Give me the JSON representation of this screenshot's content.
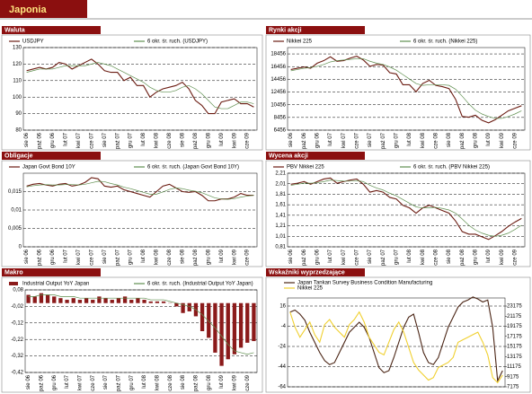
{
  "header": {
    "title": "Japonia"
  },
  "chart_data": [
    {
      "type": "line",
      "title": "Waluta",
      "categories": [
        "sie 06",
        null,
        "paź 06",
        null,
        "gru 06",
        null,
        "lut 07",
        null,
        "kwi 07",
        null,
        "cze 07",
        null,
        "sie 07",
        null,
        "paź 07",
        null,
        "gru 07",
        null,
        "lut 08",
        null,
        "kwi 08",
        null,
        "cze 08",
        null,
        "sie 08",
        null,
        "paź 08",
        null,
        "gru 08",
        null,
        "lut 09",
        null,
        "kwi 09",
        null,
        "cze 09",
        null
      ],
      "series": [
        {
          "name": "USDJPY",
          "color": "#6b1c12",
          "values": [
            116,
            117,
            118,
            117,
            118,
            121,
            120,
            117,
            119,
            121,
            123,
            120,
            116,
            115,
            115,
            110,
            112,
            107,
            107,
            100,
            103,
            105,
            106,
            107,
            109,
            105,
            98,
            95,
            90,
            90,
            97,
            98,
            99,
            96,
            96,
            94
          ]
        },
        {
          "name": "6 okr. śr. ruch. (USDJPY)",
          "color": "#5f8f4f",
          "values": [
            115,
            116,
            117,
            117,
            117,
            118,
            119,
            119,
            119,
            119,
            120,
            121,
            120,
            119,
            117,
            115,
            113,
            111,
            109,
            106,
            104,
            103,
            103,
            104,
            106,
            107,
            105,
            102,
            98,
            94,
            93,
            93,
            95,
            97,
            97,
            96
          ]
        }
      ],
      "ylim": [
        80,
        130
      ],
      "yticks": [
        80,
        90,
        100,
        110,
        120,
        130
      ],
      "grid": true,
      "legend": "top"
    },
    {
      "type": "line",
      "title": "Rynki akcji",
      "categories": [
        "sie 06",
        null,
        "paź 06",
        null,
        "gru 06",
        null,
        "lut 07",
        null,
        "kwi 07",
        null,
        "cze 07",
        null,
        "sie 07",
        null,
        "paź 07",
        null,
        "gru 07",
        null,
        "lut 08",
        null,
        "kwi 08",
        null,
        "cze 08",
        null,
        "sie 08",
        null,
        "paź 08",
        null,
        "gru 08",
        null,
        "lut 09",
        null,
        "kwi 09",
        null,
        "cze 09",
        null
      ],
      "series": [
        {
          "name": "Nikkei 225",
          "color": "#6b1c12",
          "values": [
            16000,
            16200,
            16400,
            16200,
            17000,
            17400,
            18000,
            17300,
            17400,
            17800,
            18100,
            17500,
            16500,
            16800,
            16700,
            15500,
            15300,
            13600,
            13600,
            12500,
            13800,
            14300,
            13500,
            13300,
            13000,
            11300,
            8600,
            8500,
            8800,
            8000,
            7600,
            8100,
            8800,
            9500,
            9900,
            10300
          ]
        },
        {
          "name": "6 okr. śr. ruch. (Nikkei 225)",
          "color": "#5f8f4f",
          "values": [
            15800,
            16000,
            16200,
            16300,
            16500,
            16800,
            17200,
            17400,
            17500,
            17600,
            17700,
            17700,
            17300,
            17000,
            16800,
            16400,
            15900,
            15200,
            14500,
            13800,
            13500,
            13600,
            13600,
            13600,
            13500,
            12900,
            11800,
            10600,
            9600,
            9000,
            8600,
            8300,
            8300,
            8600,
            9000,
            9500
          ]
        }
      ],
      "ylim": [
        6456,
        19456
      ],
      "yticks": [
        6456,
        8456,
        10456,
        12456,
        14456,
        16456,
        18456
      ],
      "grid": true,
      "legend": "top"
    },
    {
      "type": "line",
      "title": "Obligacje",
      "categories": [
        "sie 06",
        null,
        "paź 06",
        null,
        "gru 06",
        null,
        "lut 07",
        null,
        "kwi 07",
        null,
        "cze 07",
        null,
        "sie 07",
        null,
        "paź 07",
        null,
        "gru 07",
        null,
        "lut 08",
        null,
        "kwi 08",
        null,
        "cze 08",
        null,
        "sie 08",
        null,
        "paź 08",
        null,
        "gru 08",
        null,
        "lut 09",
        null,
        "kwi 09",
        null,
        "cze 09",
        null
      ],
      "series": [
        {
          "name": "Japan Govt Bond 10Y",
          "color": "#6b1c12",
          "values": [
            0.0165,
            0.017,
            0.0172,
            0.0168,
            0.0165,
            0.017,
            0.0172,
            0.0165,
            0.0168,
            0.0175,
            0.0188,
            0.0185,
            0.0165,
            0.0162,
            0.0165,
            0.0155,
            0.015,
            0.0145,
            0.014,
            0.0135,
            0.015,
            0.0165,
            0.017,
            0.016,
            0.015,
            0.0148,
            0.015,
            0.014,
            0.0125,
            0.0125,
            0.013,
            0.013,
            0.0135,
            0.0145,
            0.014,
            0.014
          ]
        },
        {
          "name": "6 okr. śr. ruch. (Japan Govt Bond 10Y)",
          "color": "#5f8f4f",
          "values": [
            0.0163,
            0.0166,
            0.0168,
            0.0169,
            0.0168,
            0.0168,
            0.0169,
            0.0169,
            0.0168,
            0.017,
            0.0174,
            0.0178,
            0.0177,
            0.0172,
            0.0168,
            0.0162,
            0.0158,
            0.0153,
            0.0148,
            0.0143,
            0.0143,
            0.0149,
            0.0156,
            0.016,
            0.0158,
            0.0154,
            0.0151,
            0.0147,
            0.014,
            0.0133,
            0.013,
            0.0129,
            0.0131,
            0.0135,
            0.0138,
            0.014
          ]
        }
      ],
      "ylim": [
        0,
        0.02
      ],
      "yticks": [
        0,
        {
          "value": 0.005,
          "label": "0,005"
        },
        {
          "value": 0.01,
          "label": "0,01"
        },
        {
          "value": 0.015,
          "label": "0,015"
        }
      ],
      "grid": true,
      "legend": "top"
    },
    {
      "type": "line",
      "title": "Wycena akcji",
      "categories": [
        "sie 06",
        null,
        "paź 06",
        null,
        "gru 06",
        null,
        "lut 07",
        null,
        "kwi 07",
        null,
        "cze 07",
        null,
        "sie 07",
        null,
        "paź 07",
        null,
        "gru 07",
        null,
        "lut 08",
        null,
        "kwi 08",
        null,
        "cze 08",
        null,
        "sie 08",
        null,
        "paź 08",
        null,
        "gru 08",
        null,
        "lut 09",
        null,
        "kwi 09",
        null,
        "cze 09",
        null
      ],
      "series": [
        {
          "name": "PBV Nikkei 225",
          "color": "#6b1c12",
          "values": [
            2.0,
            2.02,
            2.05,
            2.0,
            2.05,
            2.1,
            2.12,
            2.02,
            2.05,
            2.08,
            2.1,
            2.0,
            1.85,
            1.88,
            1.85,
            1.75,
            1.72,
            1.6,
            1.55,
            1.45,
            1.55,
            1.6,
            1.55,
            1.5,
            1.45,
            1.3,
            1.1,
            1.05,
            1.05,
            1.0,
            0.95,
            1.02,
            1.1,
            1.2,
            1.28,
            1.35
          ]
        },
        {
          "name": "6 okr. śr. ruch. (PBV Nikkei 225)",
          "color": "#5f8f4f",
          "values": [
            1.98,
            2.0,
            2.02,
            2.02,
            2.03,
            2.05,
            2.08,
            2.07,
            2.06,
            2.06,
            2.07,
            2.05,
            1.98,
            1.93,
            1.89,
            1.83,
            1.78,
            1.71,
            1.64,
            1.57,
            1.55,
            1.55,
            1.56,
            1.54,
            1.51,
            1.45,
            1.34,
            1.22,
            1.13,
            1.07,
            1.03,
            1.01,
            1.03,
            1.07,
            1.14,
            1.22
          ]
        }
      ],
      "ylim": [
        0.81,
        2.21
      ],
      "yticks": [
        {
          "value": 0.81,
          "label": "0,81"
        },
        {
          "value": 1.01,
          "label": "1,01"
        },
        {
          "value": 1.21,
          "label": "1,21"
        },
        {
          "value": 1.41,
          "label": "1,41"
        },
        {
          "value": 1.61,
          "label": "1,61"
        },
        {
          "value": 1.81,
          "label": "1,81"
        },
        {
          "value": 2.01,
          "label": "2,01"
        },
        {
          "value": 2.21,
          "label": "2,21"
        }
      ],
      "grid": true,
      "legend": "top"
    },
    {
      "type": "bar",
      "title": "Makro",
      "categories": [
        "sie 06",
        null,
        "paź 06",
        null,
        "gru 06",
        null,
        "lut 07",
        null,
        "kwi 07",
        null,
        "cze 07",
        null,
        "sie 07",
        null,
        "paź 07",
        null,
        "gru 07",
        null,
        "lut 08",
        null,
        "kwi 08",
        null,
        "cze 08",
        null,
        "sie 08",
        null,
        "paź 08",
        null,
        "gru 08",
        null,
        "lut 09",
        null,
        "kwi 09",
        null,
        "cze 09",
        null
      ],
      "series": [
        {
          "name": "Industrial Output YoY Japan",
          "color": "#8b1a1a",
          "type": "bar",
          "values": [
            0.05,
            0.04,
            0.06,
            0.05,
            0.04,
            0.03,
            0.02,
            0.03,
            0.02,
            0.03,
            0.02,
            0.04,
            0.03,
            0.02,
            0.03,
            0.04,
            0.02,
            0.03,
            0.02,
            0.01,
            0.01,
            0.01,
            0.0,
            -0.02,
            -0.06,
            -0.05,
            -0.08,
            -0.17,
            -0.21,
            -0.3,
            -0.38,
            -0.34,
            -0.31,
            -0.27,
            -0.24,
            -0.23
          ]
        },
        {
          "name": "6 okr. śr. ruch. (Industrial Output YoY Japan)",
          "color": "#5f8f4f",
          "type": "line",
          "values": [
            0.04,
            0.04,
            0.05,
            0.05,
            0.05,
            0.04,
            0.04,
            0.04,
            0.03,
            0.03,
            0.03,
            0.03,
            0.03,
            0.03,
            0.03,
            0.03,
            0.03,
            0.03,
            0.03,
            0.02,
            0.02,
            0.02,
            0.01,
            0.0,
            -0.01,
            -0.02,
            -0.04,
            -0.07,
            -0.11,
            -0.15,
            -0.2,
            -0.25,
            -0.29,
            -0.3,
            -0.31,
            -0.3
          ]
        }
      ],
      "ylim": [
        -0.42,
        0.08
      ],
      "yticks": [
        {
          "value": -0.42,
          "label": "-0,42"
        },
        {
          "value": -0.32,
          "label": "-0,32"
        },
        {
          "value": -0.22,
          "label": "-0,22"
        },
        {
          "value": -0.12,
          "label": "-0,12"
        },
        {
          "value": -0.02,
          "label": "-0,02"
        },
        {
          "value": 0.08,
          "label": "0,08"
        }
      ],
      "grid": true,
      "legend": "top"
    },
    {
      "type": "line",
      "title": "Wskaźniki wyprzedzające",
      "series": [
        {
          "name": "Japan Tankan Survey Business Condition Manufacturing",
          "color": "#4a2414",
          "values": [
            10,
            12,
            8,
            2,
            -10,
            -20,
            -30,
            -38,
            -42,
            -40,
            -30,
            -20,
            -10,
            -5,
            0,
            -5,
            -15,
            -30,
            -45,
            -50,
            -48,
            -35,
            -20,
            -5,
            5,
            8,
            -10,
            -30,
            -40,
            -42,
            -35,
            -20,
            -5,
            5,
            15,
            20,
            22,
            25,
            23,
            20,
            22,
            -5,
            -58,
            -48
          ]
        },
        {
          "name": "Nikkei 225",
          "color": "#f0d030",
          "axis": "y2",
          "values": [
            22000,
            19000,
            17000,
            18500,
            20000,
            17500,
            16000,
            19500,
            20500,
            19000,
            18000,
            17000,
            19500,
            20500,
            22000,
            20000,
            17000,
            15500,
            14000,
            13500,
            16000,
            18500,
            20000,
            18000,
            15000,
            12000,
            10500,
            9500,
            8500,
            9000,
            11000,
            11500,
            12000,
            13000,
            16000,
            16500,
            17000,
            17500,
            18000,
            16000,
            13500,
            9000,
            8000,
            9500
          ]
        }
      ],
      "ylim": [
        -64,
        24
      ],
      "yticks": [
        -64,
        -44,
        -24,
        -4,
        16
      ],
      "y2lim": [
        7175,
        24775
      ],
      "y2ticks": [
        7175,
        9175,
        11175,
        13175,
        15175,
        17175,
        19175,
        21175,
        23175
      ],
      "grid": true,
      "legend": "top"
    }
  ]
}
